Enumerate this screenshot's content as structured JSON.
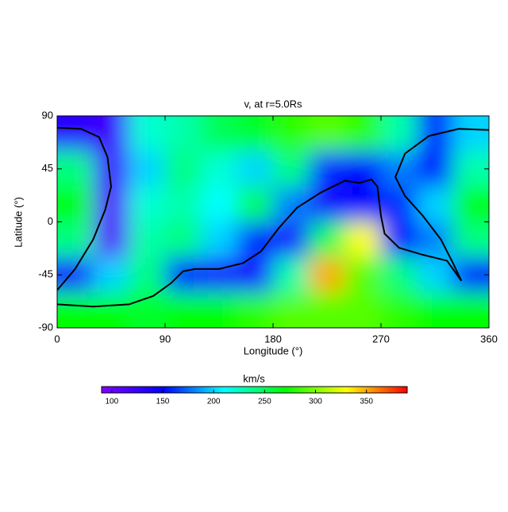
{
  "chart_data": {
    "type": "heatmap",
    "title": "v, at r=5.0Rs",
    "xlabel": "Longitude (°)",
    "ylabel": "Latitude (°)",
    "xlim": [
      0,
      360
    ],
    "ylim": [
      -90,
      90
    ],
    "xticks": [
      0,
      90,
      180,
      270,
      360
    ],
    "yticks": [
      -90,
      -45,
      0,
      45,
      90
    ],
    "z": [
      [
        130,
        120,
        220,
        230,
        250,
        260,
        280,
        290,
        280,
        230,
        160,
        200
      ],
      [
        240,
        120,
        200,
        240,
        220,
        200,
        240,
        160,
        150,
        180,
        150,
        230
      ],
      [
        270,
        110,
        220,
        230,
        210,
        250,
        180,
        140,
        150,
        160,
        200,
        270
      ],
      [
        240,
        110,
        230,
        240,
        200,
        160,
        140,
        250,
        330,
        150,
        180,
        240
      ],
      [
        140,
        200,
        240,
        150,
        140,
        140,
        230,
        350,
        290,
        240,
        200,
        150
      ],
      [
        270,
        270,
        260,
        270,
        270,
        280,
        290,
        290,
        290,
        280,
        270,
        270
      ]
    ],
    "colormap": [
      "#8000ff",
      "#0000ff",
      "#00ffff",
      "#00ff00",
      "#ffff00",
      "#ff0000"
    ],
    "colorbar": {
      "label": "km/s",
      "lim": [
        90,
        390
      ],
      "ticks": [
        100,
        150,
        200,
        250,
        300,
        350
      ]
    },
    "neutral_line": {
      "color": "#000000",
      "x": [
        0,
        20,
        35,
        42,
        45,
        40,
        30,
        15,
        0,
        null,
        0,
        30,
        60,
        80,
        95,
        105,
        115,
        135,
        155,
        170,
        185,
        200,
        220,
        240,
        252,
        262,
        267,
        270,
        273,
        285,
        305,
        325,
        337,
        330,
        320,
        305,
        290,
        282,
        290,
        310,
        335,
        360
      ],
      "y": [
        80,
        79,
        72,
        55,
        30,
        10,
        -15,
        -40,
        -58,
        null,
        -70,
        -72,
        -70,
        -63,
        -52,
        -42,
        -40,
        -40,
        -35,
        -25,
        -5,
        12,
        25,
        35,
        33,
        36,
        30,
        5,
        -10,
        -22,
        -28,
        -33,
        -50,
        -35,
        -15,
        5,
        22,
        38,
        58,
        73,
        79,
        78
      ]
    }
  }
}
